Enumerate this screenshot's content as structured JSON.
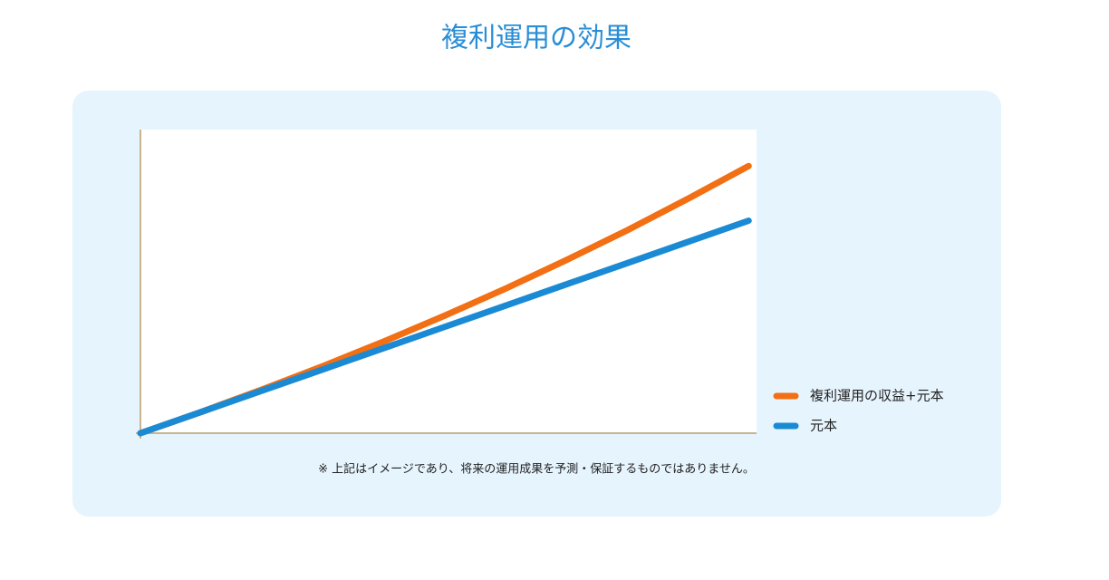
{
  "chart_data": {
    "type": "line",
    "title": "複利運用の効果",
    "note": "※ 上記はイメージであり、将来の運用成果を予測・保証するものではありません。",
    "x": [
      0,
      1,
      2,
      3,
      4,
      5,
      6,
      7,
      8,
      9,
      10
    ],
    "xlim": [
      0,
      10.13
    ],
    "ylim": [
      0,
      100
    ],
    "legend": "right-bottom",
    "series": [
      {
        "name": "複利運用の収益+元本",
        "color": "#f26f13",
        "values": [
          0,
          7,
          14.4,
          22.1,
          30.2,
          38.7,
          47.6,
          57,
          66.8,
          77.2,
          88
        ]
      },
      {
        "name": "元本",
        "color": "#1a8ad4",
        "values": [
          0,
          7,
          14,
          21,
          28,
          35,
          42,
          49,
          56,
          63,
          70
        ]
      }
    ]
  }
}
